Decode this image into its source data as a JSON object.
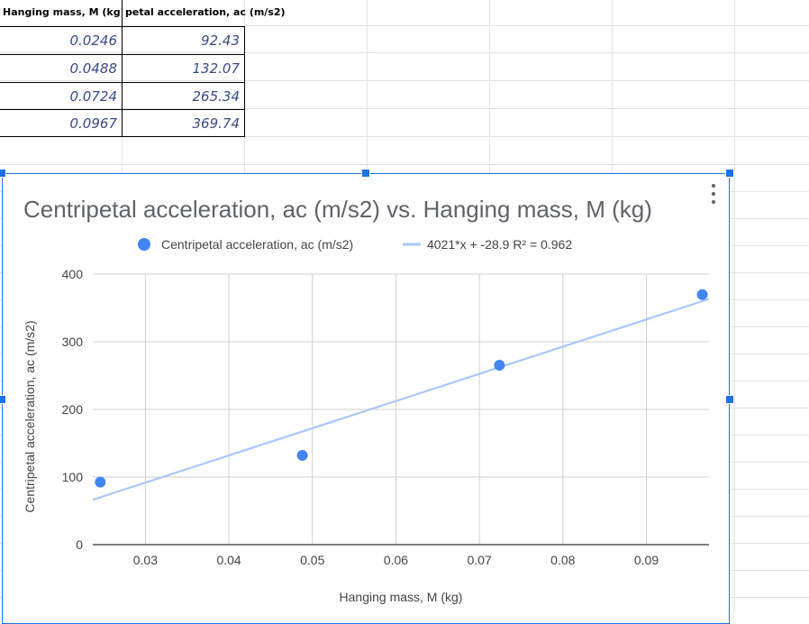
{
  "sheet": {
    "headers": [
      "Hanging mass, M (kg)",
      "petal acceleration, ac (m/s2)"
    ],
    "rows": [
      [
        "0.0246",
        "92.43"
      ],
      [
        "0.0488",
        "132.07"
      ],
      [
        "0.0724",
        "265.34"
      ],
      [
        "0.0967",
        "369.74"
      ]
    ]
  },
  "colors": {
    "accent": "#1a73e8",
    "point": "#4285f4",
    "trendline": "#a8c7fa",
    "cell_text": "#3b4a8a"
  },
  "chart_data": {
    "type": "scatter",
    "title": "Centripetal acceleration, ac (m/s2) vs. Hanging mass, M (kg)",
    "xlabel": "Hanging mass, M (kg)",
    "ylabel": "Centripetal acceleration, ac (m/s2)",
    "legend_position": "top",
    "grid": true,
    "xlim": [
      0.0237,
      0.0975
    ],
    "ylim": [
      0,
      400
    ],
    "x_ticks": [
      "0.03",
      "0.04",
      "0.05",
      "0.06",
      "0.07",
      "0.08",
      "0.09"
    ],
    "y_ticks": [
      "0",
      "100",
      "200",
      "300",
      "400"
    ],
    "series": [
      {
        "name": "Centripetal acceleration, ac (m/s2)",
        "x": [
          0.0246,
          0.0488,
          0.0724,
          0.0967
        ],
        "y": [
          92.43,
          132.07,
          265.34,
          369.74
        ],
        "color": "#4285f4"
      }
    ],
    "trendline": {
      "label": "4021*x + -28.9 R² = 0.962",
      "slope": 4021,
      "intercept": -28.9,
      "color": "#a8c7fa"
    }
  }
}
